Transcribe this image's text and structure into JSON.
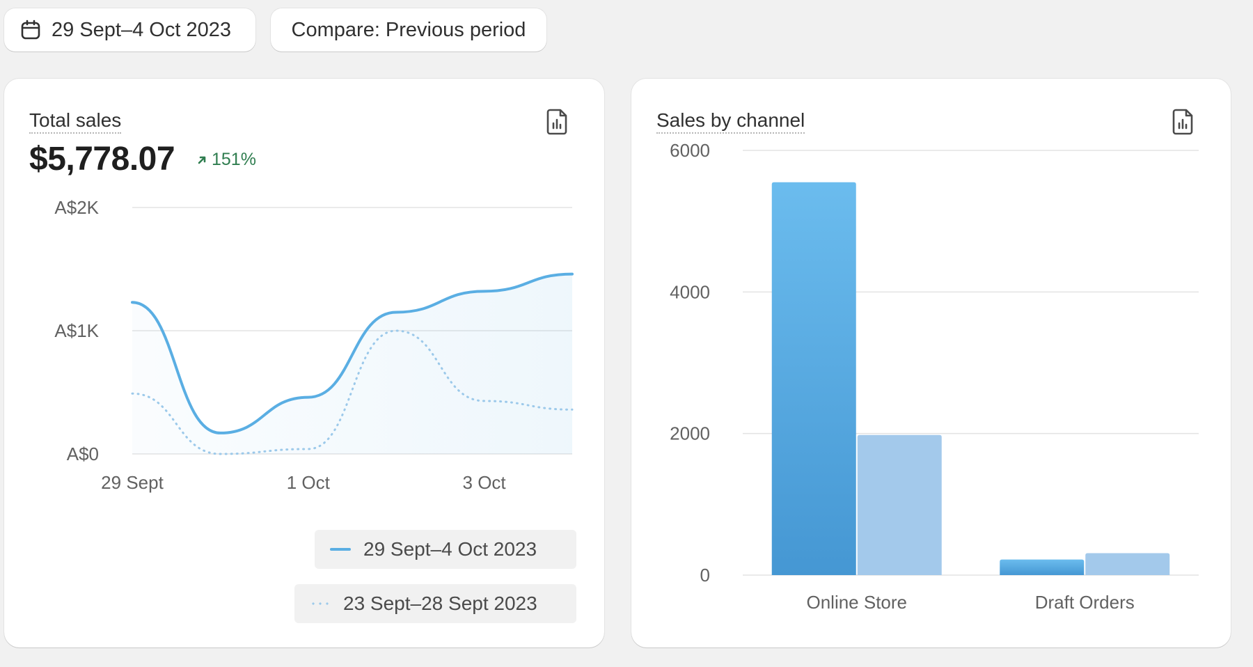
{
  "toolbar": {
    "date_range": "29 Sept–4 Oct 2023",
    "compare": "Compare: Previous period",
    "calendar_icon": "calendar-icon"
  },
  "total_sales": {
    "title": "Total sales",
    "value": "$5,778.07",
    "change": "151%",
    "change_direction": "up",
    "change_color": "#2f7d4f",
    "export_icon": "report-export-icon",
    "legend": {
      "current": "29 Sept–4 Oct 2023",
      "previous": "23 Sept–28 Sept 2023"
    }
  },
  "sales_by_channel": {
    "title": "Sales by channel",
    "export_icon": "report-export-icon"
  },
  "chart_data": [
    {
      "type": "line",
      "title": "Total sales",
      "y_ticks": [
        "A$0",
        "A$1K",
        "A$2K"
      ],
      "ylim": [
        0,
        2000
      ],
      "x_tick_labels": [
        "29 Sept",
        "1 Oct",
        "3 Oct"
      ],
      "x": [
        "29 Sept",
        "30 Sept",
        "1 Oct",
        "2 Oct",
        "3 Oct",
        "4 Oct"
      ],
      "series": [
        {
          "name": "29 Sept–4 Oct 2023",
          "style": "solid",
          "color": "#5aaee3",
          "values": [
            1230,
            170,
            460,
            1150,
            1320,
            1460
          ]
        },
        {
          "name": "23 Sept–28 Sept 2023",
          "style": "dotted",
          "color": "#9cc9ea",
          "values": [
            490,
            0,
            40,
            1000,
            430,
            360
          ]
        }
      ],
      "grid": true,
      "legend_position": "bottom-right"
    },
    {
      "type": "bar",
      "title": "Sales by channel",
      "categories": [
        "Online Store",
        "Draft Orders"
      ],
      "y_ticks": [
        0,
        2000,
        4000,
        6000
      ],
      "ylim": [
        0,
        6000
      ],
      "series": [
        {
          "name": "29 Sept–4 Oct 2023",
          "color": "#4a9fd8",
          "values": [
            5550,
            220
          ]
        },
        {
          "name": "23 Sept–28 Sept 2023",
          "color": "#a3c9eb",
          "values": [
            1980,
            310
          ]
        }
      ],
      "grid": true
    }
  ]
}
